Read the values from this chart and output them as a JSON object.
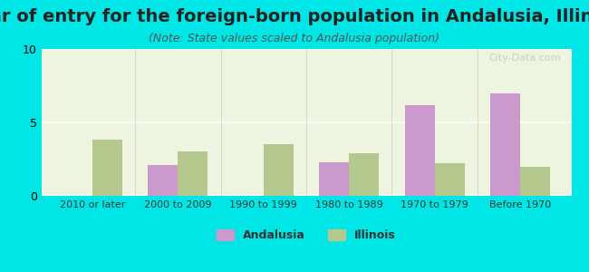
{
  "title": "Year of entry for the foreign-born population in Andalusia, Illinois",
  "subtitle": "(Note: State values scaled to Andalusia population)",
  "categories": [
    "2010 or later",
    "2000 to 2009",
    "1990 to 1999",
    "1980 to 1989",
    "1970 to 1979",
    "Before 1970"
  ],
  "andalusia_values": [
    0,
    2.1,
    0,
    2.3,
    6.2,
    7.0
  ],
  "illinois_values": [
    3.8,
    3.0,
    3.5,
    2.9,
    2.2,
    2.0
  ],
  "andalusia_color": "#cc99cc",
  "illinois_color": "#b5c98e",
  "background_color": "#00e5e5",
  "ylim": [
    0,
    10
  ],
  "yticks": [
    0,
    5,
    10
  ],
  "bar_width": 0.35,
  "title_fontsize": 14,
  "subtitle_fontsize": 9,
  "legend_labels": [
    "Andalusia",
    "Illinois"
  ],
  "watermark": "City-Data.com"
}
